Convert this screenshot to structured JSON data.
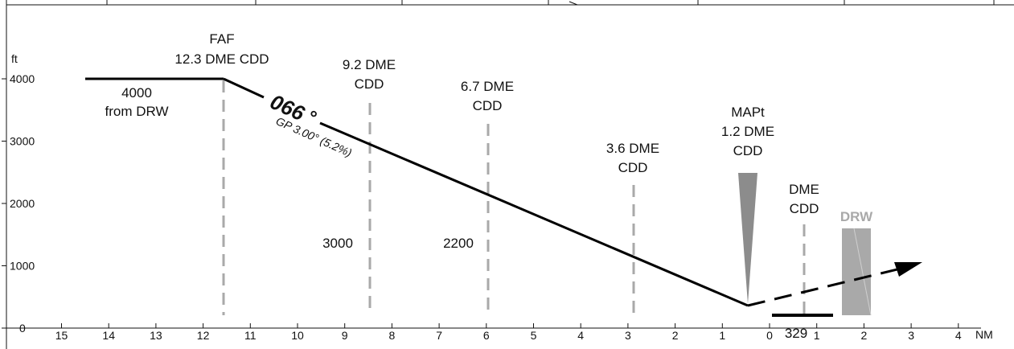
{
  "top_strip": {
    "dividers": 10
  },
  "axes": {
    "altitude_unit": "ft",
    "distance_unit": "NM",
    "altitude_ticks": [
      {
        "alt": 4000,
        "label": "4000"
      },
      {
        "alt": 3000,
        "label": "3000"
      },
      {
        "alt": 2000,
        "label": "2000"
      },
      {
        "alt": 1000,
        "label": "1000"
      },
      {
        "alt": 0,
        "label": "0"
      }
    ],
    "distance_ticks": [
      {
        "nm": 15,
        "label": "15"
      },
      {
        "nm": 14,
        "label": "14"
      },
      {
        "nm": 13,
        "label": "13"
      },
      {
        "nm": 12,
        "label": "12"
      },
      {
        "nm": 11,
        "label": "11"
      },
      {
        "nm": 10,
        "label": "10"
      },
      {
        "nm": 9,
        "label": "9"
      },
      {
        "nm": 8,
        "label": "8"
      },
      {
        "nm": 7,
        "label": "7"
      },
      {
        "nm": 6,
        "label": "6"
      },
      {
        "nm": 5,
        "label": "5"
      },
      {
        "nm": 4,
        "label": "4"
      },
      {
        "nm": 3,
        "label": "3"
      },
      {
        "nm": 2,
        "label": "2"
      },
      {
        "nm": 1,
        "label": "1"
      },
      {
        "nm": 0,
        "label": "0"
      },
      {
        "nm": -1,
        "label": "1"
      },
      {
        "nm": -2,
        "label": "2"
      },
      {
        "nm": -3,
        "label": "3"
      },
      {
        "nm": -4,
        "label": "4"
      }
    ]
  },
  "initial_segment": {
    "altitude": "4000",
    "from": "from DRW"
  },
  "faf": {
    "name": "FAF",
    "dme": "12.3 DME CDD"
  },
  "course": {
    "value": "066",
    "degree": "°"
  },
  "glidepath": {
    "text": "GP 3.00° (5.2%)"
  },
  "fixes": [
    {
      "id": "fix-9-2",
      "line1": "9.2 DME",
      "line2": "CDD",
      "altitude": "3000"
    },
    {
      "id": "fix-6-7",
      "line1": "6.7 DME",
      "line2": "CDD",
      "altitude": "2200"
    },
    {
      "id": "fix-3-6",
      "line1": "3.6 DME",
      "line2": "CDD"
    }
  ],
  "mapt": {
    "line1": "MAPt",
    "line2": "1.2 DME",
    "line3": "CDD"
  },
  "dme": {
    "line1": "DME",
    "line2": "CDD"
  },
  "runway": {
    "ident": "DRW",
    "elevation": "329"
  },
  "colors": {
    "fix_line": "#a9a9a9",
    "runway_fill": "#a9a9a9",
    "mapt_fill": "#8c8c8c",
    "path": "#000000"
  }
}
